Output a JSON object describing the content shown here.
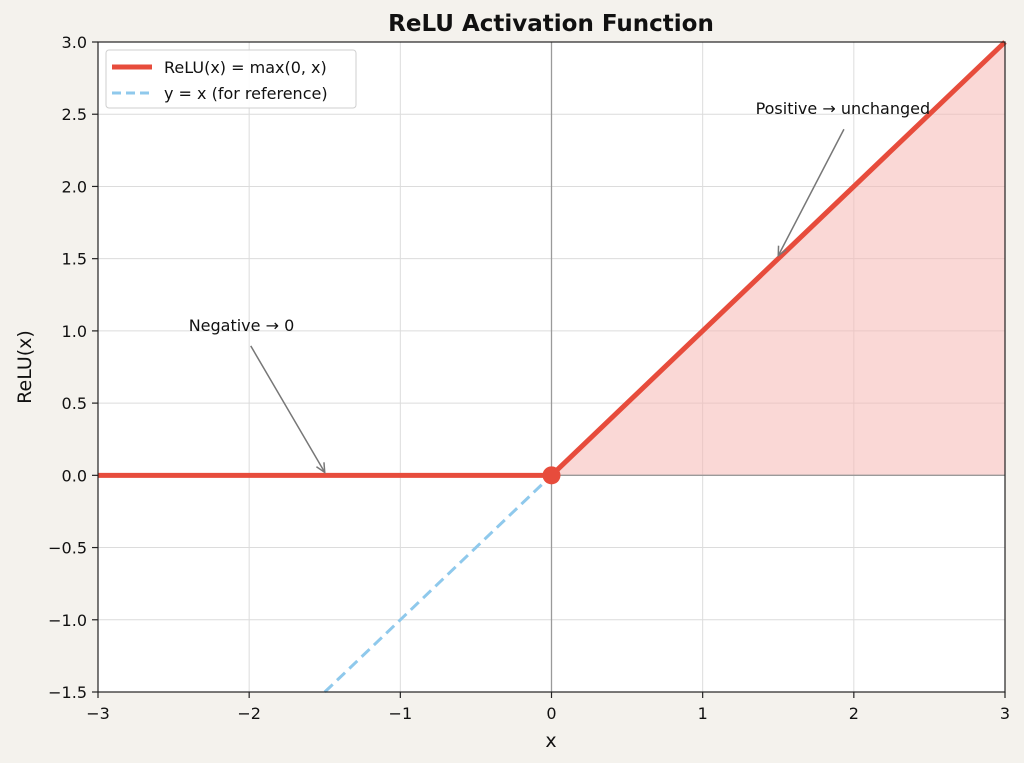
{
  "chart_data": {
    "type": "line",
    "title": "ReLU Activation Function",
    "xlabel": "x",
    "ylabel": "ReLU(x)",
    "xlim": [
      -3,
      3
    ],
    "ylim": [
      -1.5,
      3.0
    ],
    "x_ticks": [
      -3,
      -2,
      -1,
      0,
      1,
      2,
      3
    ],
    "x_tick_labels": [
      "−3",
      "−2",
      "−1",
      "0",
      "1",
      "2",
      "3"
    ],
    "y_ticks": [
      -1.5,
      -1.0,
      -0.5,
      0.0,
      0.5,
      1.0,
      1.5,
      2.0,
      2.5,
      3.0
    ],
    "y_tick_labels": [
      "−1.5",
      "−1.0",
      "−0.5",
      "0.0",
      "0.5",
      "1.0",
      "1.5",
      "2.0",
      "2.5",
      "3.0"
    ],
    "grid": true,
    "legend_position": "top-left",
    "series": [
      {
        "name": "ReLU(x) = max(0, x)",
        "style": "solid",
        "color": "#e74c3c",
        "x": [
          -3,
          0,
          3
        ],
        "y": [
          0,
          0,
          3
        ]
      },
      {
        "name": "y = x (for reference)",
        "style": "dashed",
        "color": "#8fc9ec",
        "x": [
          -1.5,
          0
        ],
        "y": [
          -1.5,
          0
        ]
      }
    ],
    "fill": {
      "color": "#f6b8b4",
      "x": [
        0,
        3
      ],
      "y_lower": 0,
      "y_upper": "relu"
    },
    "marker": {
      "x": 0,
      "y": 0,
      "color": "#e74c3c"
    },
    "annotations": [
      {
        "text": "Negative → 0",
        "text_x": -2.4,
        "text_y": 1.0,
        "arrow_x": -1.5,
        "arrow_y": 0.0
      },
      {
        "text": "Positive → unchanged",
        "text_x": 1.35,
        "text_y": 2.5,
        "arrow_x": 1.5,
        "arrow_y": 1.5
      }
    ]
  }
}
